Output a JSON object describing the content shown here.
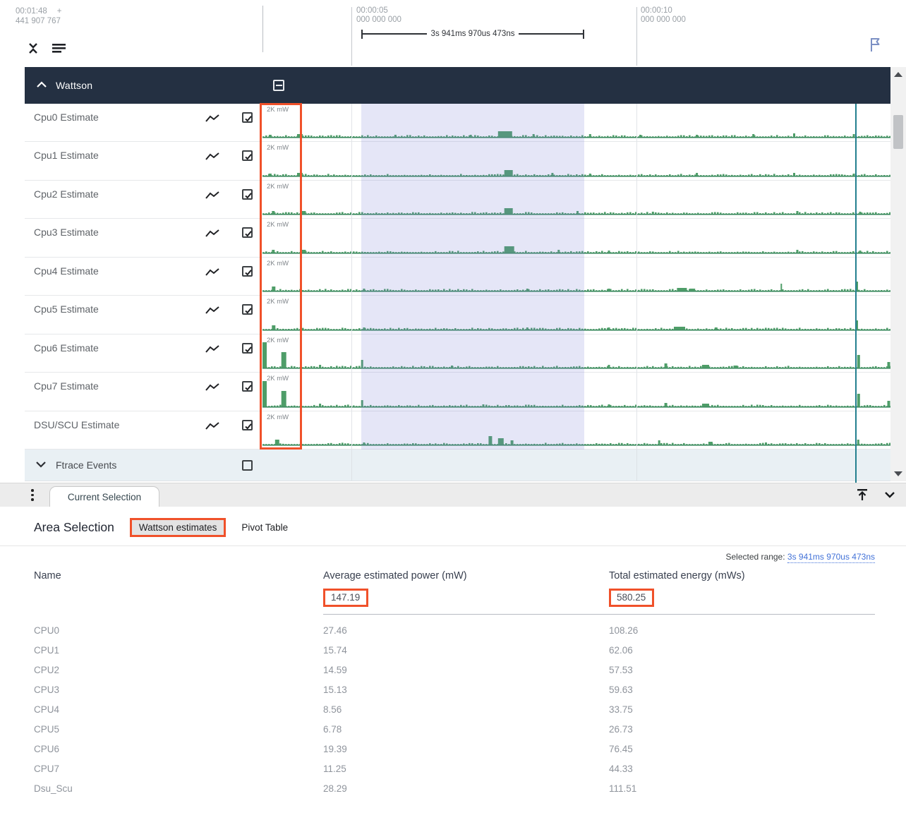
{
  "ruler": {
    "cursor_time": "00:01:48",
    "cursor_plus": "+",
    "cursor_ns": "441 907 767",
    "tick5_time": "00:00:05",
    "tick5_ns": "000 000 000",
    "tick10_time": "00:00:10",
    "tick10_ns": "000 000 000",
    "span_label": "3s 941ms 970us 473ns"
  },
  "group_header": {
    "label": "Wattson"
  },
  "scale_label": "2K mW",
  "tracks": [
    {
      "label": "Cpu0 Estimate",
      "spikes": [
        [
          0.01,
          3,
          4
        ],
        [
          0.055,
          4,
          8
        ],
        [
          0.21,
          3,
          3
        ],
        [
          0.33,
          3,
          3
        ],
        [
          0.375,
          8,
          20
        ],
        [
          0.43,
          4,
          3
        ],
        [
          0.52,
          4,
          3
        ],
        [
          0.6,
          3,
          3
        ],
        [
          0.69,
          3,
          3
        ],
        [
          0.78,
          4,
          3
        ],
        [
          0.845,
          5,
          3
        ],
        [
          0.94,
          4,
          3
        ]
      ]
    },
    {
      "label": "Cpu1 Estimate",
      "spikes": [
        [
          0.01,
          3,
          4
        ],
        [
          0.055,
          4,
          8
        ],
        [
          0.385,
          8,
          12
        ],
        [
          0.46,
          4,
          3
        ],
        [
          0.52,
          3,
          3
        ],
        [
          0.69,
          4,
          3
        ],
        [
          0.845,
          4,
          3
        ],
        [
          0.94,
          3,
          3
        ]
      ]
    },
    {
      "label": "Cpu2 Estimate",
      "spikes": [
        [
          0.015,
          4,
          4
        ],
        [
          0.06,
          4,
          8
        ],
        [
          0.385,
          8,
          12
        ],
        [
          0.5,
          4,
          3
        ],
        [
          0.62,
          3,
          3
        ],
        [
          0.85,
          4,
          3
        ],
        [
          0.95,
          3,
          3
        ]
      ]
    },
    {
      "label": "Cpu3 Estimate",
      "spikes": [
        [
          0.015,
          4,
          4
        ],
        [
          0.06,
          4,
          8
        ],
        [
          0.385,
          9,
          14
        ],
        [
          0.47,
          4,
          3
        ],
        [
          0.55,
          3,
          3
        ],
        [
          0.85,
          4,
          3
        ],
        [
          0.95,
          3,
          3
        ]
      ]
    },
    {
      "label": "Cpu4 Estimate",
      "spikes": [
        [
          0.015,
          6,
          5
        ],
        [
          0.16,
          3,
          3
        ],
        [
          0.42,
          3,
          3
        ],
        [
          0.55,
          3,
          3
        ],
        [
          0.66,
          4,
          14
        ],
        [
          0.68,
          3,
          8
        ],
        [
          0.825,
          10,
          2
        ],
        [
          0.945,
          13,
          3
        ]
      ]
    },
    {
      "label": "Cpu5 Estimate",
      "spikes": [
        [
          0.015,
          6,
          5
        ],
        [
          0.16,
          3,
          3
        ],
        [
          0.42,
          3,
          3
        ],
        [
          0.55,
          3,
          3
        ],
        [
          0.655,
          4,
          16
        ],
        [
          0.72,
          3,
          4
        ],
        [
          0.945,
          13,
          3
        ]
      ]
    },
    {
      "label": "Cpu6 Estimate",
      "spikes": [
        [
          0.0,
          36,
          6
        ],
        [
          0.03,
          22,
          7
        ],
        [
          0.09,
          4,
          3
        ],
        [
          0.157,
          11,
          3
        ],
        [
          0.3,
          3,
          3
        ],
        [
          0.55,
          4,
          3
        ],
        [
          0.64,
          6,
          4
        ],
        [
          0.7,
          4,
          10
        ],
        [
          0.75,
          3,
          6
        ],
        [
          0.947,
          18,
          4
        ],
        [
          0.995,
          8,
          4
        ]
      ]
    },
    {
      "label": "Cpu7 Estimate",
      "spikes": [
        [
          0.0,
          36,
          6
        ],
        [
          0.03,
          22,
          7
        ],
        [
          0.09,
          4,
          3
        ],
        [
          0.157,
          9,
          3
        ],
        [
          0.35,
          3,
          3
        ],
        [
          0.55,
          3,
          3
        ],
        [
          0.64,
          5,
          4
        ],
        [
          0.7,
          4,
          10
        ],
        [
          0.947,
          18,
          4
        ],
        [
          0.995,
          8,
          4
        ]
      ]
    },
    {
      "label": "DSU/SCU Estimate",
      "spikes": [
        [
          0.02,
          7,
          6
        ],
        [
          0.16,
          3,
          3
        ],
        [
          0.36,
          12,
          5
        ],
        [
          0.375,
          9,
          8
        ],
        [
          0.395,
          6,
          4
        ],
        [
          0.63,
          6,
          3
        ],
        [
          0.71,
          4,
          6
        ],
        [
          0.8,
          3,
          3
        ],
        [
          0.947,
          7,
          3
        ]
      ]
    }
  ],
  "ftrace": {
    "label": "Ftrace Events"
  },
  "tabbar": {
    "current_tab": "Current Selection"
  },
  "details": {
    "title": "Area Selection",
    "active_tab": "Wattson estimates",
    "inactive_tab": "Pivot Table",
    "selected_range_label": "Selected range:",
    "selected_range_value": "3s 941ms 970us 473ns",
    "table": {
      "columns": [
        "Name",
        "Average estimated power (mW)",
        "Total estimated energy (mWs)"
      ],
      "totals": {
        "power": "147.19",
        "energy": "580.25"
      },
      "rows": [
        [
          "CPU0",
          "27.46",
          "108.26"
        ],
        [
          "CPU1",
          "15.74",
          "62.06"
        ],
        [
          "CPU2",
          "14.59",
          "57.53"
        ],
        [
          "CPU3",
          "15.13",
          "59.63"
        ],
        [
          "CPU4",
          "8.56",
          "33.75"
        ],
        [
          "CPU5",
          "6.78",
          "26.73"
        ],
        [
          "CPU6",
          "19.39",
          "76.45"
        ],
        [
          "CPU7",
          "11.25",
          "44.33"
        ],
        [
          "Dsu_Scu",
          "28.29",
          "111.51"
        ]
      ]
    }
  },
  "colors": {
    "accent_orange": "#f0512a",
    "trace_green": "#4e9d68",
    "trace_green_dark": "#3e8b61",
    "group_header_bg": "#243042",
    "selection_overlay": "rgba(124,132,216,0.20)",
    "cursor_teal": "#24808f",
    "link_blue": "#4272d8"
  }
}
